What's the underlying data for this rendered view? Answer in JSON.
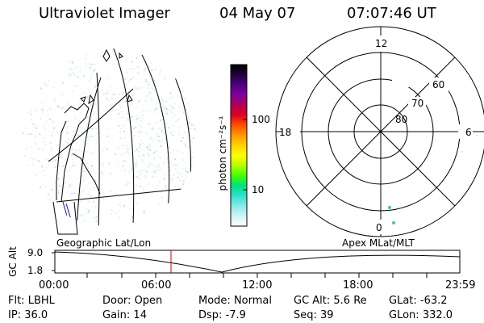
{
  "header": {
    "instrument": "Ultraviolet Imager",
    "date": "04 May 07",
    "time": "07:07:46 UT"
  },
  "colorbar": {
    "unit_label": "photon cm⁻²s⁻¹",
    "ticks": [
      "100",
      "10"
    ],
    "colors": [
      "#000000",
      "#200040",
      "#500080",
      "#8000a0",
      "#b00050",
      "#e00020",
      "#ff5000",
      "#ff9a00",
      "#ffd000",
      "#ffff00",
      "#b4ff00",
      "#40ff00",
      "#00e080",
      "#30e0d0",
      "#8aeae6",
      "#d4f2f2",
      "#ffffff"
    ]
  },
  "polar_plot": {
    "mlt_labels": {
      "top": "12",
      "right": "6",
      "bottom": "0",
      "left": "18"
    },
    "lat_labels": [
      "60",
      "70",
      "80"
    ]
  },
  "map_labels": {
    "left": "Geographic Lat/Lon",
    "right": "Apex MLat/MLT"
  },
  "altitude_plot": {
    "ylabel": "GC Alt",
    "yticks": [
      "9.0",
      "1.8"
    ],
    "xticks": [
      "00:00",
      "06:00",
      "12:00",
      "18:00",
      "23:59"
    ],
    "marker_color": "#cc0000"
  },
  "footer": {
    "row1": [
      {
        "label": "Flt:",
        "value": "LBHL"
      },
      {
        "label": "Door:",
        "value": "Open"
      },
      {
        "label": "Mode:",
        "value": "Normal"
      },
      {
        "label": "GC Alt:",
        "value": "5.6 Re"
      },
      {
        "label": "GLat:",
        "value": "-63.2"
      }
    ],
    "row2": [
      {
        "label": "IP:",
        "value": "36.0"
      },
      {
        "label": "Gain:",
        "value": "14"
      },
      {
        "label": "Dsp:",
        "value": "-7.9"
      },
      {
        "label": "Seq:",
        "value": "39"
      },
      {
        "label": "GLon:",
        "value": "332.0"
      }
    ]
  }
}
